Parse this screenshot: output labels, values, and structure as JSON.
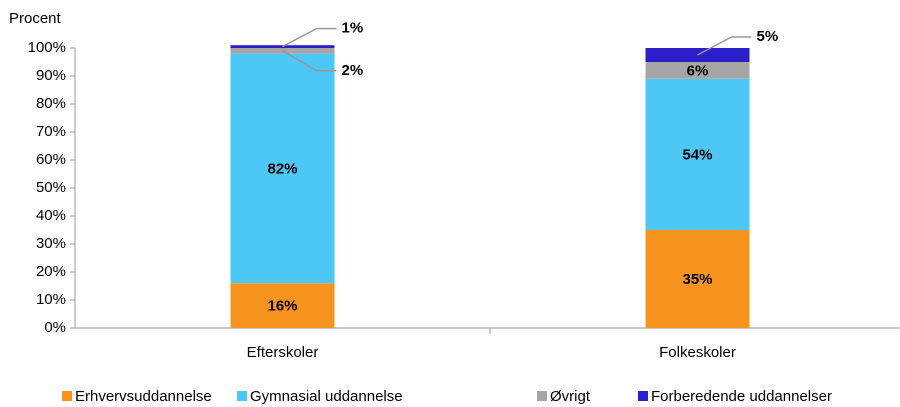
{
  "chart_data": {
    "type": "stacked_bar",
    "y_axis_label": "Procent",
    "categories": [
      "Efterskoler",
      "Folkeskoler"
    ],
    "series": [
      {
        "name": "Erhvervsuddannelse",
        "color": "#f7941d",
        "values": [
          16,
          35
        ],
        "value_labels": [
          "16%",
          "35%"
        ]
      },
      {
        "name": "Gymnasial uddannelse",
        "color": "#4dc7f5",
        "values": [
          82,
          54
        ],
        "value_labels": [
          "82%",
          "54%"
        ]
      },
      {
        "name": "Øvrigt",
        "color": "#a6a6a6",
        "values": [
          2,
          6
        ],
        "value_labels": [
          "2%",
          "6%"
        ]
      },
      {
        "name": "Forberedende uddannelser",
        "color": "#2a1fc9",
        "values": [
          1,
          5
        ],
        "value_labels": [
          "1%",
          "5%"
        ]
      }
    ],
    "ylim": [
      0,
      100
    ],
    "yticks": [
      {
        "value": 0,
        "label": "0%"
      },
      {
        "value": 10,
        "label": "10%"
      },
      {
        "value": 20,
        "label": "20%"
      },
      {
        "value": 30,
        "label": "30%"
      },
      {
        "value": 40,
        "label": "40%"
      },
      {
        "value": 50,
        "label": "50%"
      },
      {
        "value": 60,
        "label": "60%"
      },
      {
        "value": 70,
        "label": "70%"
      },
      {
        "value": 80,
        "label": "80%"
      },
      {
        "value": 90,
        "label": "90%"
      },
      {
        "value": 100,
        "label": "100%"
      }
    ],
    "legend": "bottom"
  }
}
